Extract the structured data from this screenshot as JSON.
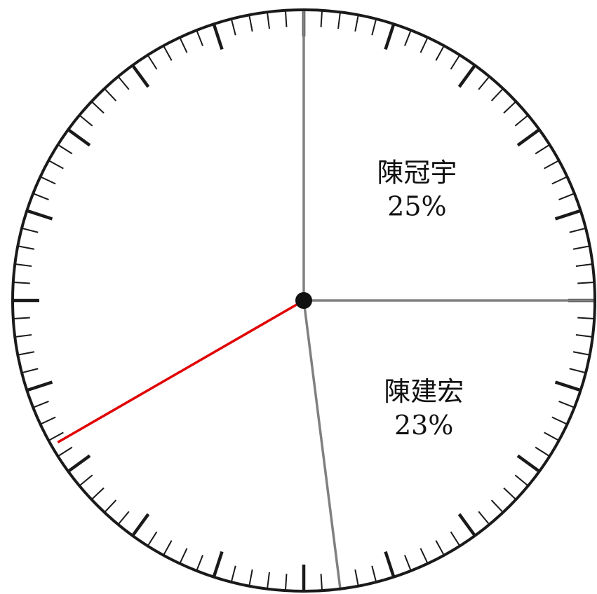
{
  "chart_data": {
    "type": "pie",
    "title": "",
    "slices": [
      {
        "name": "陳冠宇",
        "value": 25,
        "percent_label": "25%"
      },
      {
        "name": "陳建宏",
        "value": 23,
        "percent_label": "23%"
      }
    ],
    "start_angle_deg_clockwise_from_top": 0,
    "indicator_angle_deg_clockwise_from_top": 240,
    "dial": {
      "minor_ticks": 100,
      "major_every": 5
    },
    "colors": {
      "rim": "#1a1a1a",
      "tick": "#1a1a1a",
      "divider": "#808080",
      "indicator": "#e00000",
      "hub": "#111111",
      "background": "#ffffff"
    }
  }
}
